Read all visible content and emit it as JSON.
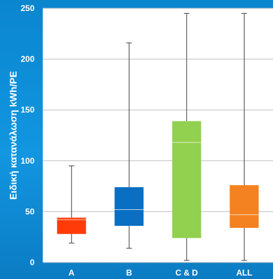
{
  "chart_data": {
    "type": "box",
    "ylabel": "Ειδική κατανάλωση kWh/PE",
    "ylim": [
      0,
      250
    ],
    "yticks": [
      "0",
      "50",
      "100",
      "150",
      "200",
      "250"
    ],
    "grid": true,
    "categories": [
      "A",
      "B",
      "C & D",
      "ALL"
    ],
    "boxes": [
      {
        "category": "A",
        "min": 19,
        "q1": 28,
        "median": 42,
        "q3": 44,
        "max": 95,
        "color": "#ff3b0a"
      },
      {
        "category": "B",
        "min": 14,
        "q1": 36,
        "median": 52,
        "q3": 74,
        "max": 216,
        "color": "#0a6fc2"
      },
      {
        "category": "C & D",
        "min": 2,
        "q1": 24,
        "median": 118,
        "q3": 139,
        "max": 245,
        "color": "#92d050"
      },
      {
        "category": "ALL",
        "min": 2,
        "q1": 34,
        "median": 47,
        "q3": 76,
        "max": 245,
        "color": "#f58220"
      }
    ]
  }
}
